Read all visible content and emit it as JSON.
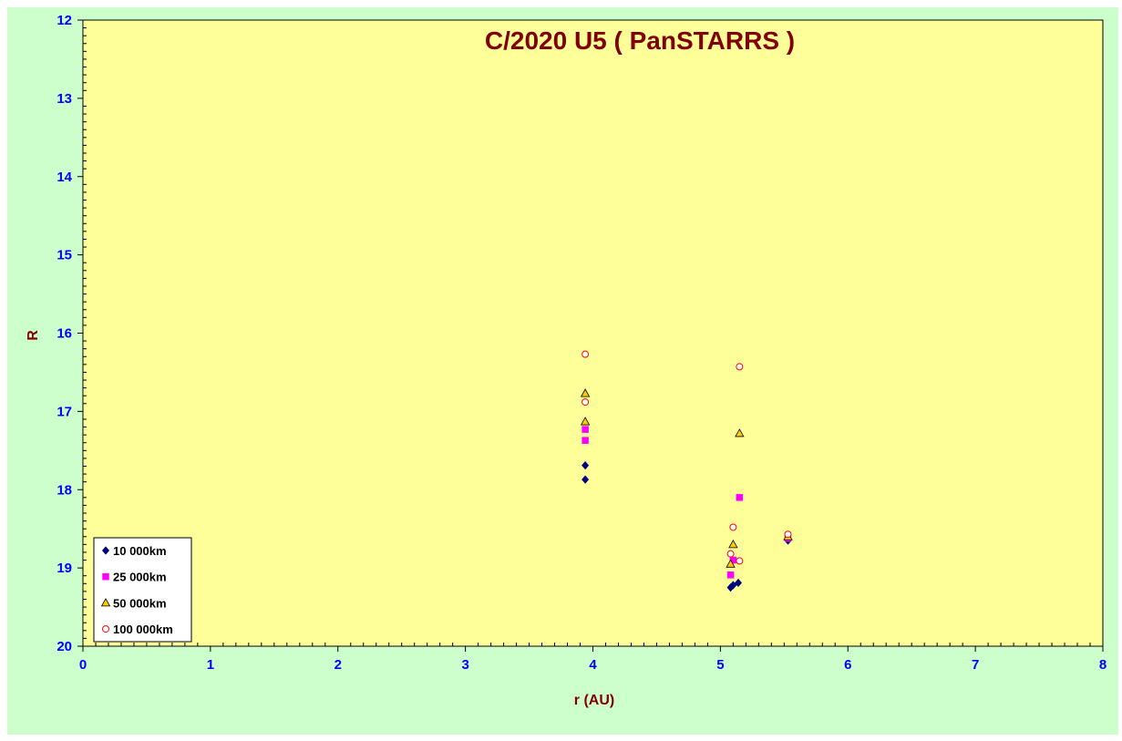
{
  "chart_data": {
    "type": "scatter",
    "title": "C/2020 U5 ( PanSTARRS )",
    "xlabel": "r (AU)",
    "ylabel": "R",
    "xlim": [
      0,
      8
    ],
    "ylim": [
      12,
      20
    ],
    "y_inverted": true,
    "x_ticks": [
      "0",
      "1",
      "2",
      "3",
      "4",
      "5",
      "6",
      "7",
      "8"
    ],
    "y_ticks": [
      "12",
      "13",
      "14",
      "15",
      "16",
      "17",
      "18",
      "19",
      "20"
    ],
    "grid": false,
    "legend_position": "bottom-left",
    "plot_background": "#ffff99",
    "frame_background": "#ccffcc",
    "series": [
      {
        "name": "10 000km",
        "marker": "diamond",
        "color": "#000080",
        "points": [
          [
            3.94,
            17.69
          ],
          [
            3.94,
            17.87
          ],
          [
            5.08,
            19.25
          ],
          [
            5.1,
            19.22
          ],
          [
            5.14,
            19.19
          ],
          [
            5.53,
            18.65
          ]
        ]
      },
      {
        "name": "25 000km",
        "marker": "square",
        "color": "#ff00ff",
        "points": [
          [
            3.94,
            17.23
          ],
          [
            3.94,
            17.37
          ],
          [
            5.08,
            19.09
          ],
          [
            5.1,
            18.9
          ],
          [
            5.15,
            18.1
          ],
          [
            5.53,
            18.62
          ]
        ]
      },
      {
        "name": "50 000km",
        "marker": "triangle",
        "color": "#ffcc00",
        "points": [
          [
            3.94,
            16.77
          ],
          [
            3.94,
            17.13
          ],
          [
            5.08,
            18.95
          ],
          [
            5.1,
            18.7
          ],
          [
            5.15,
            17.28
          ],
          [
            5.53,
            18.6
          ]
        ]
      },
      {
        "name": "100 000km",
        "marker": "circle",
        "color": "#ff0000",
        "points": [
          [
            3.94,
            16.27
          ],
          [
            3.94,
            16.88
          ],
          [
            5.08,
            18.82
          ],
          [
            5.1,
            18.48
          ],
          [
            5.15,
            16.43
          ],
          [
            5.15,
            18.91
          ],
          [
            5.53,
            18.57
          ]
        ]
      }
    ]
  }
}
